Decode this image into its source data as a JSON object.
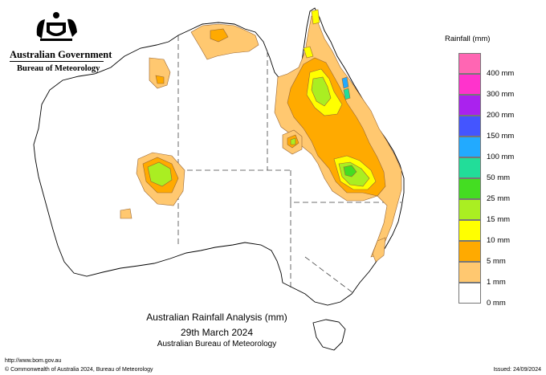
{
  "header": {
    "government": "Australian Government",
    "bureau": "Bureau of Meteorology",
    "logo": "commonwealth-coat-of-arms"
  },
  "legend": {
    "title": "Rainfall (mm)",
    "items": [
      {
        "label": "",
        "color": "#ff66b3"
      },
      {
        "label": "400 mm",
        "color": "#ff33cc"
      },
      {
        "label": "300 mm",
        "color": "#aa22ee"
      },
      {
        "label": "200 mm",
        "color": "#4455ff"
      },
      {
        "label": "150 mm",
        "color": "#22aaff"
      },
      {
        "label": "100 mm",
        "color": "#22dd99"
      },
      {
        "label": "50 mm",
        "color": "#44dd22"
      },
      {
        "label": "25 mm",
        "color": "#aaee22"
      },
      {
        "label": "15 mm",
        "color": "#ffff00"
      },
      {
        "label": "10 mm",
        "color": "#ffaa00"
      },
      {
        "label": "5 mm",
        "color": "#ffc870"
      },
      {
        "label": "1 mm",
        "color": "#ffffff"
      },
      {
        "label": "0 mm",
        "color": ""
      }
    ]
  },
  "map_title": {
    "line1": "Australian Rainfall Analysis (mm)",
    "line2": "29th March 2024",
    "line3": "Australian Bureau of Meteorology"
  },
  "footer": {
    "url": "http://www.bom.gov.au",
    "copyright": "© Commonwealth of Australia 2024, Bureau of Meteorology",
    "issued": "Issued: 24/09/2024"
  }
}
